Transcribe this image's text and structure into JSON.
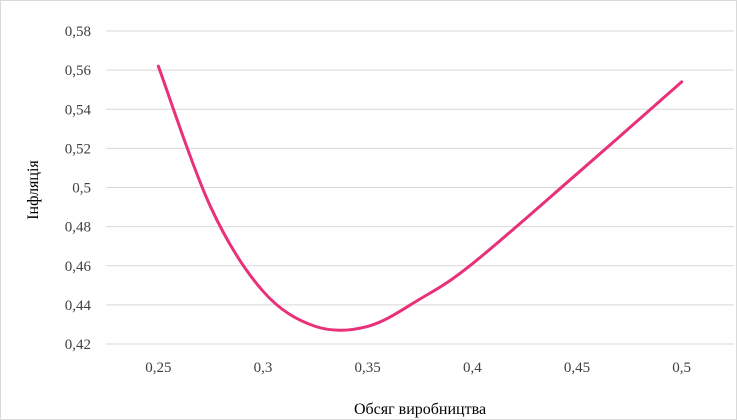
{
  "chart_data": {
    "type": "line",
    "title": "",
    "xlabel": "Обсяг виробництва",
    "ylabel": "Інфляція",
    "x_tick_labels": [
      "0,25",
      "0,3",
      "0,35",
      "0,4",
      "0,45",
      "0,5"
    ],
    "y_tick_labels": [
      "0,42",
      "0,44",
      "0,46",
      "0,48",
      "0,5",
      "0,52",
      "0,54",
      "0,56",
      "0,58"
    ],
    "xlim": [
      0.225,
      0.525
    ],
    "ylim": [
      0.42,
      0.58
    ],
    "grid": "horizontal",
    "legend": "none",
    "smooth": true,
    "series": [
      {
        "color": "#e8317a",
        "x": [
          0.25,
          0.275,
          0.3,
          0.325,
          0.35,
          0.375,
          0.4,
          0.45,
          0.5
        ],
        "y": [
          0.562,
          0.49,
          0.447,
          0.429,
          0.429,
          0.443,
          0.461,
          0.507,
          0.554
        ]
      }
    ]
  }
}
